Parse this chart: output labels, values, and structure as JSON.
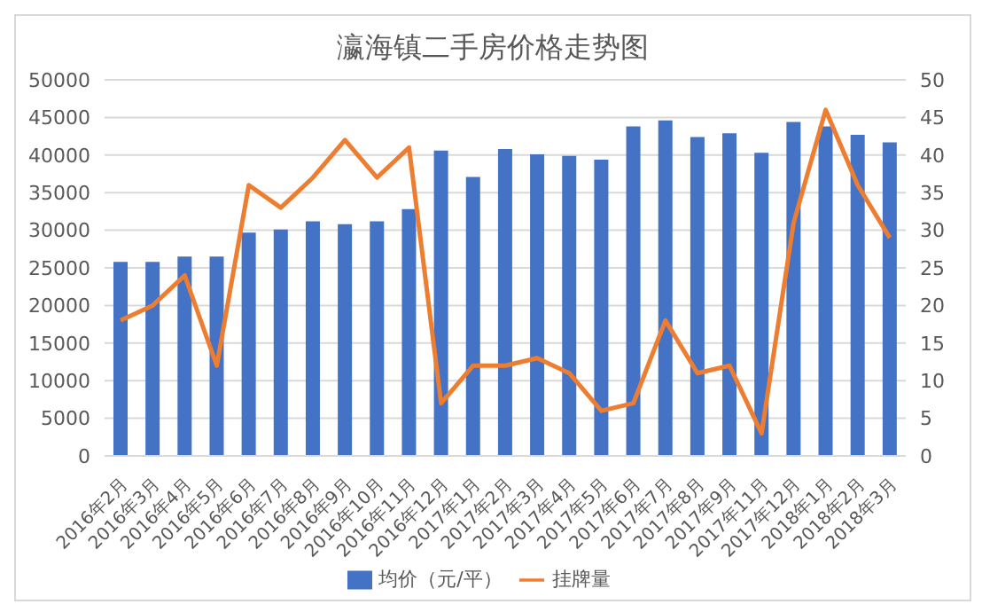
{
  "chart_data": {
    "type": "bar",
    "title": "瀛海镇二手房价格走势图",
    "categories": [
      "2016年2月",
      "2016年3月",
      "2016年4月",
      "2016年5月",
      "2016年6月",
      "2016年7月",
      "2016年8月",
      "2016年9月",
      "2016年10月",
      "2016年11月",
      "2016年12月",
      "2017年1月",
      "2017年2月",
      "2017年3月",
      "2017年4月",
      "2017年5月",
      "2017年6月",
      "2017年7月",
      "2017年8月",
      "2017年9月",
      "2017年11月",
      "2017年12月",
      "2018年1月",
      "2018年2月",
      "2018年3月"
    ],
    "series": [
      {
        "name": "均价（元/平）",
        "color": "#4472c4",
        "values": [
          25800,
          25800,
          26500,
          26500,
          29700,
          30100,
          31200,
          30800,
          31200,
          32800,
          40600,
          37100,
          40800,
          40100,
          39900,
          39400,
          43800,
          44600,
          42400,
          42900,
          40300,
          44400,
          43800,
          42700,
          41700
        ]
      },
      {
        "name": "挂牌量",
        "type": "line",
        "axis": "y2",
        "color": "#ed7d31",
        "values": [
          18,
          20,
          24,
          12,
          36,
          33,
          37,
          42,
          37,
          41,
          7,
          12,
          12,
          13,
          11,
          6,
          7,
          18,
          11,
          12,
          3,
          31,
          46,
          36,
          29
        ]
      }
    ],
    "ylim": [
      0,
      50000
    ],
    "yticks": [
      0,
      5000,
      10000,
      15000,
      20000,
      25000,
      30000,
      35000,
      40000,
      45000,
      50000
    ],
    "y2lim": [
      0,
      50
    ],
    "y2ticks": [
      0,
      5,
      10,
      15,
      20,
      25,
      30,
      35,
      40,
      45,
      50
    ],
    "grid": "y",
    "legend": "bottom",
    "marker": "none"
  }
}
